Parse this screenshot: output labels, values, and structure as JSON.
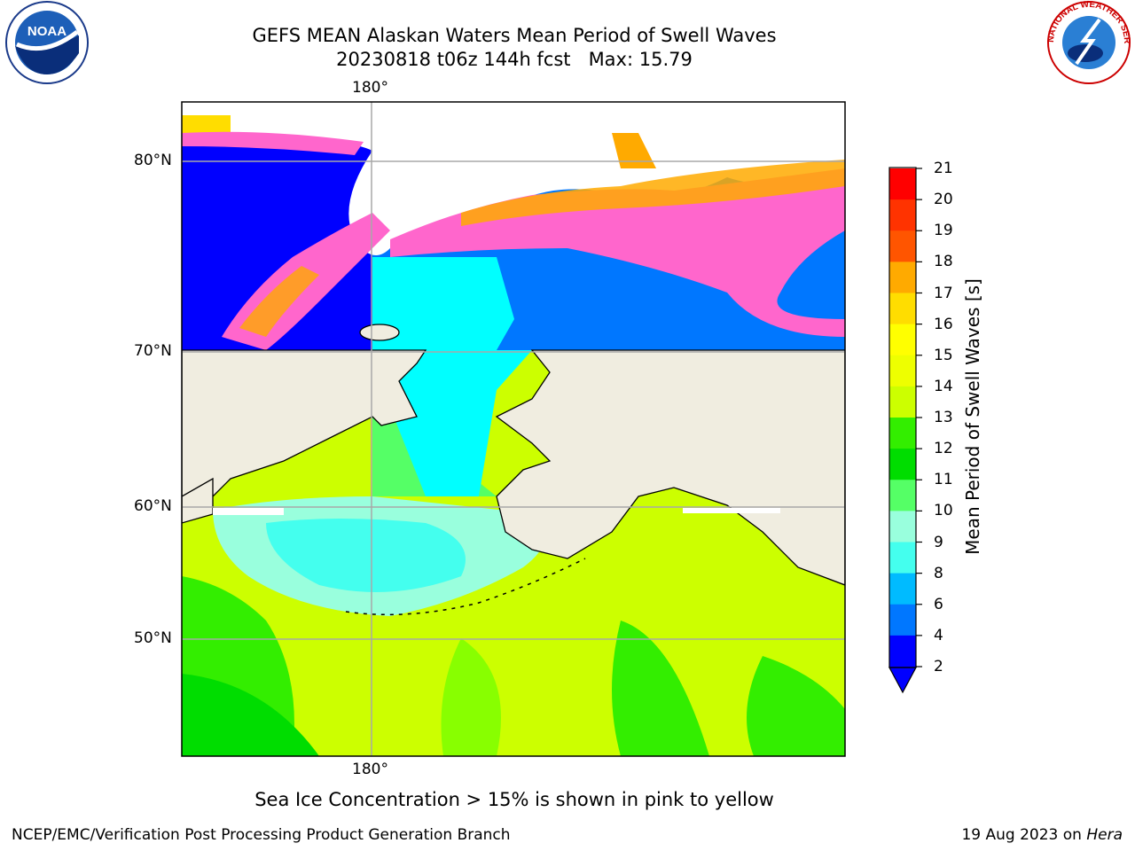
{
  "title": {
    "line1": "GEFS MEAN Alaskan Waters Mean Period of Swell Waves",
    "line2": "20230818 t06z 144h fcst   Max: 15.79"
  },
  "map": {
    "lon_label_top": "180°",
    "lon_label_bottom": "180°",
    "lat_labels": [
      "80°N",
      "70°N",
      "60°N",
      "50°N"
    ],
    "colors": {
      "land": "#f0ede0",
      "grid": "#a8a8a8",
      "coast": "#000000"
    }
  },
  "colorbar": {
    "title": "Mean Period of Swell Waves [s]",
    "ticks": [
      "21",
      "20",
      "19",
      "18",
      "17",
      "16",
      "15",
      "14",
      "13",
      "12",
      "11",
      "10",
      "9",
      "8",
      "6",
      "4",
      "2"
    ],
    "colors": [
      "#ff0000",
      "#ff3300",
      "#ff5500",
      "#ff8000",
      "#ffaa00",
      "#ffdd00",
      "#ffff00",
      "#eeff00",
      "#ccff00",
      "#88ff00",
      "#33ee00",
      "#00dd00",
      "#55ff66",
      "#99ffdd",
      "#44ffee",
      "#00ffff",
      "#00bbff",
      "#0077ff",
      "#0000ff"
    ]
  },
  "logos": {
    "left_text": "NOAA",
    "right_text": "NATIONAL WEATHER SERVICE"
  },
  "bottom_note": "Sea Ice Concentration > 15% is shown in pink to yellow",
  "footer": {
    "left": "NCEP/EMC/Verification Post Processing Product Generation Branch",
    "right_prefix": "19 Aug 2023 on ",
    "right_host": "Hera"
  }
}
